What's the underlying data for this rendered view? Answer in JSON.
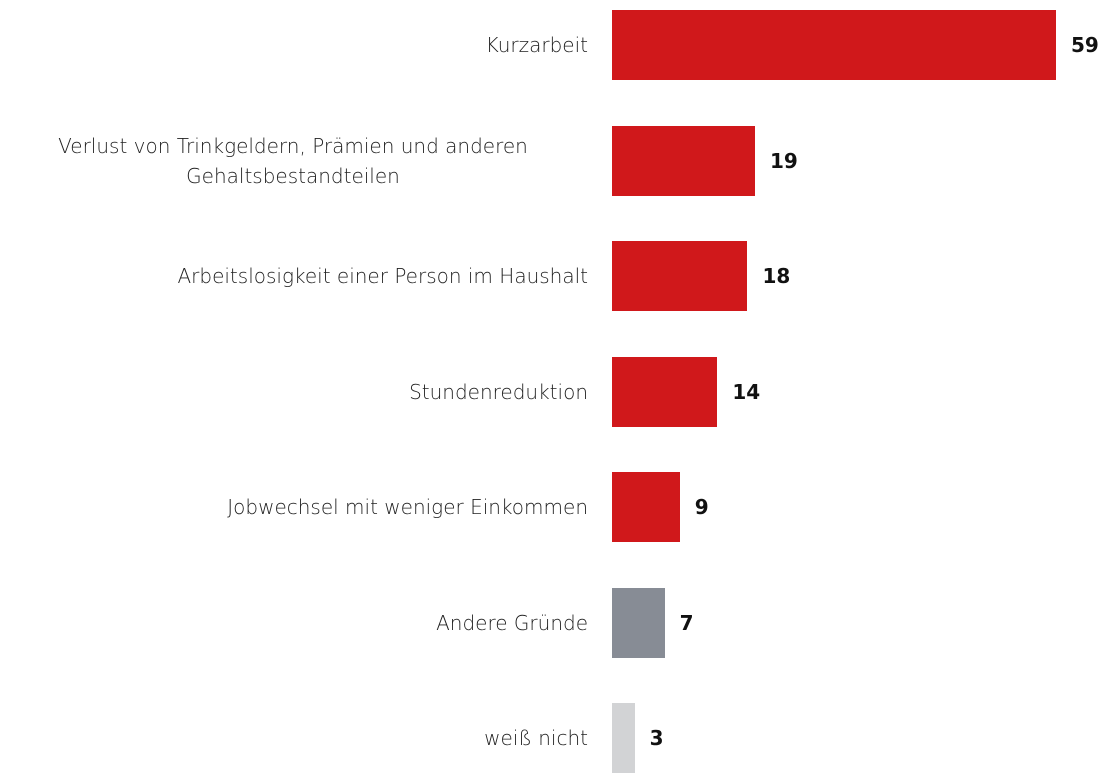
{
  "chart_data": {
    "type": "bar",
    "orientation": "horizontal",
    "categories": [
      "Kurzarbeit",
      "Verlust von Trinkgeldern, Prämien und anderen Gehaltsbestandteilen",
      "Arbeitslosigkeit einer Person im Haushalt",
      "Stundenreduktion",
      "Jobwechsel mit weniger Einkommen",
      "Andere Gründe",
      "weiß nicht"
    ],
    "values": [
      59,
      19,
      18,
      14,
      9,
      7,
      3
    ],
    "colors": [
      "#d0181b",
      "#d0181b",
      "#d0181b",
      "#d0181b",
      "#d0181b",
      "#878c95",
      "#d2d3d5"
    ]
  }
}
